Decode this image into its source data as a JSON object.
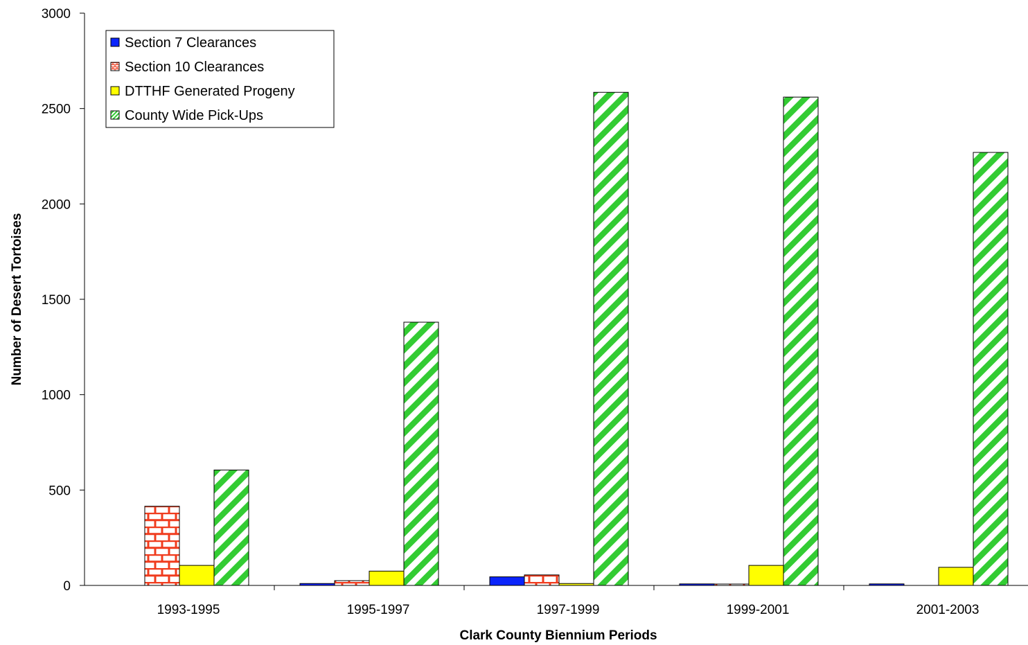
{
  "chart_data": {
    "type": "bar",
    "title": "",
    "xlabel": "Clark County Biennium Periods",
    "ylabel": "Number of Desert Tortoises",
    "ylim": [
      0,
      3000
    ],
    "yticks": [
      0,
      500,
      1000,
      1500,
      2000,
      2500,
      3000
    ],
    "categories": [
      "1993-1995",
      "1995-1997",
      "1997-1999",
      "1999-2001",
      "2001-2003"
    ],
    "series": [
      {
        "name": "Section 7 Clearances",
        "values": [
          0,
          10,
          45,
          8,
          8
        ],
        "color": "#0b24fb",
        "pattern": "solid"
      },
      {
        "name": "Section 10 Clearances",
        "values": [
          415,
          25,
          55,
          2,
          0
        ],
        "color": "#f03c1e",
        "pattern": "brick"
      },
      {
        "name": "DTTHF Generated Progeny",
        "values": [
          105,
          75,
          10,
          105,
          95
        ],
        "color": "#ffff00",
        "pattern": "solid"
      },
      {
        "name": "County Wide Pick-Ups",
        "values": [
          605,
          1380,
          2585,
          2560,
          2270
        ],
        "color": "#33cc33",
        "pattern": "diagonal"
      }
    ],
    "legend_position": "top-left",
    "grid": false
  }
}
